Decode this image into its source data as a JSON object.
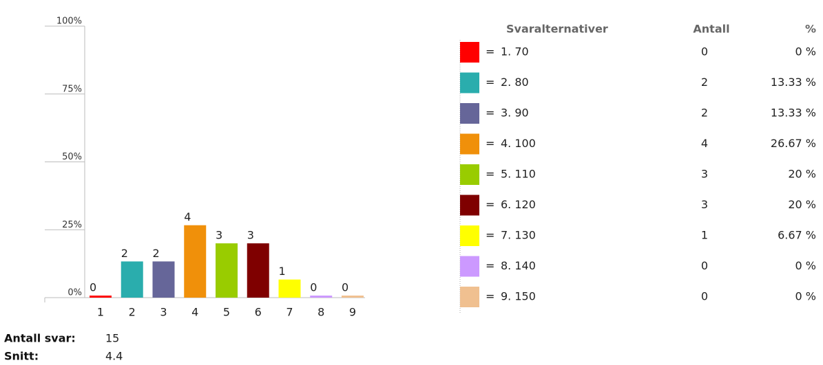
{
  "chart_data": {
    "type": "bar",
    "categories": [
      "1",
      "2",
      "3",
      "4",
      "5",
      "6",
      "7",
      "8",
      "9"
    ],
    "values": [
      0,
      13.33,
      13.33,
      26.67,
      20,
      20,
      6.67,
      0,
      0
    ],
    "value_labels": [
      "0 %",
      "13.33 %",
      "13.33 %",
      "26.67 %",
      "20 %",
      "20 %",
      "6.67 %",
      "0 %",
      "0 %"
    ],
    "counts": [
      0,
      2,
      2,
      4,
      3,
      3,
      1,
      0,
      0
    ],
    "colors": [
      "#ff0000",
      "#2aadad",
      "#666699",
      "#f0900a",
      "#99cc00",
      "#7f0000",
      "#ffff00",
      "#cc99ff",
      "#f0c090"
    ],
    "ylim": [
      0,
      100
    ],
    "yticks": [
      {
        "value": 0,
        "label": "0%"
      },
      {
        "value": 25,
        "label": "25%"
      },
      {
        "value": 50,
        "label": "50%"
      },
      {
        "value": 75,
        "label": "75%"
      },
      {
        "value": 100,
        "label": "100%"
      }
    ],
    "table": {
      "headers": [
        "Svaralternativer",
        "Antall",
        "%"
      ],
      "labels": [
        "1. 70",
        "2. 80",
        "3. 90",
        "4. 100",
        "5. 110",
        "6. 120",
        "7. 130",
        "8. 140",
        "9. 150"
      ],
      "equals": "="
    },
    "summary": [
      {
        "label": "Antall svar:",
        "value": "15"
      },
      {
        "label": "Snitt:",
        "value": "4.4"
      }
    ]
  }
}
